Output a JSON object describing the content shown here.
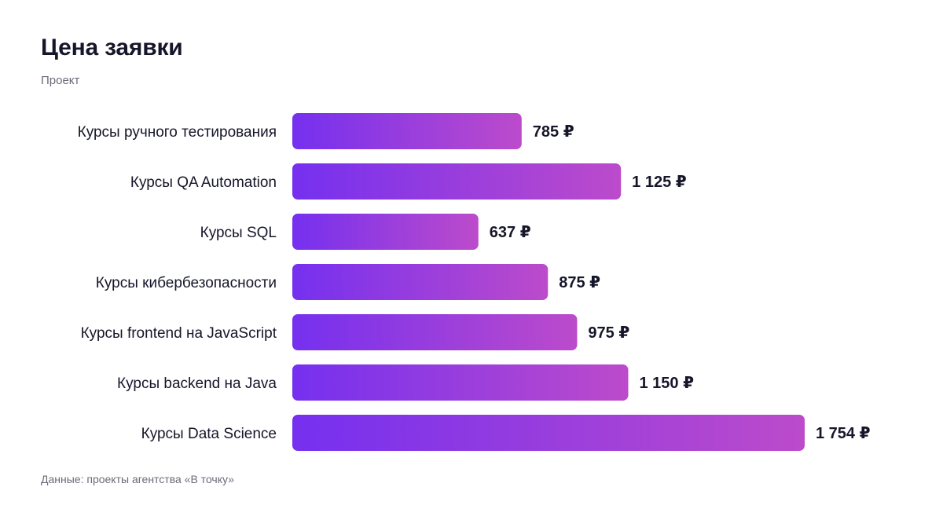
{
  "header": {
    "title": "Цена заявки",
    "subtitle": "Проект"
  },
  "footer": {
    "source": "Данные: проекты агентства «В точку»"
  },
  "colors": {
    "bar_start": "#7530ef",
    "bar_end": "#bc4bcb",
    "text": "#16162a",
    "muted": "#6b6b78"
  },
  "chart_data": {
    "type": "bar",
    "orientation": "horizontal",
    "title": "Цена заявки",
    "subtitle": "Проект",
    "xlabel": "",
    "ylabel": "",
    "categories": [
      "Курсы ручного тестирования",
      "Курсы QA Automation",
      "Курсы SQL",
      "Курсы кибербезопасности",
      "Курсы frontend на JavaScript",
      "Курсы backend на Java",
      "Курсы Data Science"
    ],
    "values": [
      785,
      1125,
      637,
      875,
      975,
      1150,
      1754
    ],
    "value_labels": [
      "785 ₽",
      "1 125 ₽",
      "637 ₽",
      "875 ₽",
      "975 ₽",
      "1 150 ₽",
      "1 754 ₽"
    ],
    "xlim": [
      0,
      1754
    ],
    "grid": false,
    "legend": "none"
  }
}
